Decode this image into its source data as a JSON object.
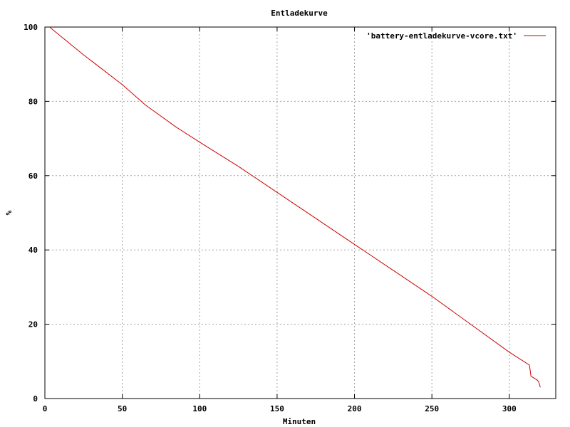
{
  "chart_data": {
    "type": "line",
    "title": "Entladekurve",
    "xlabel": "Minuten",
    "ylabel": "%",
    "xlim": [
      0,
      330
    ],
    "ylim": [
      0,
      100
    ],
    "xticks": [
      0,
      50,
      100,
      150,
      200,
      250,
      300
    ],
    "yticks": [
      0,
      20,
      40,
      60,
      80,
      100
    ],
    "grid": true,
    "legend_position": "top-right",
    "series": [
      {
        "name": "'battery-entladekurve-vcore.txt'",
        "color": "#cc0000",
        "x": [
          3,
          25,
          50,
          65,
          85,
          100,
          125,
          150,
          175,
          200,
          225,
          250,
          275,
          300,
          313,
          314,
          316,
          318,
          319,
          320
        ],
        "y": [
          100,
          92.5,
          84.5,
          79,
          73,
          69,
          62.5,
          55.5,
          48.5,
          41.5,
          34.5,
          27.5,
          20,
          12.5,
          9,
          6,
          5.5,
          5,
          4.5,
          3
        ]
      }
    ]
  }
}
